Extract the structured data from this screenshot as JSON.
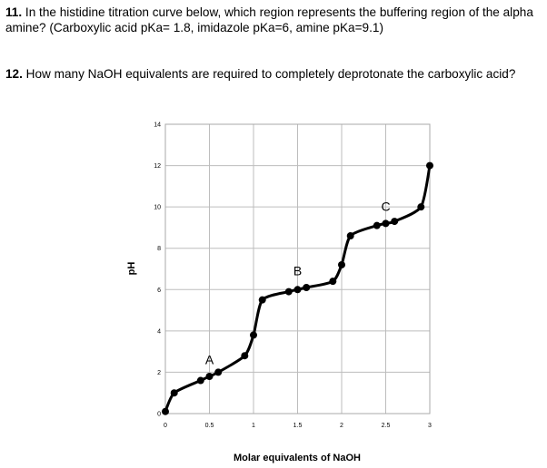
{
  "questions": [
    {
      "number": "11.",
      "text": " In the histidine titration curve below, which region represents the buffering region of the alpha amine? (Carboxylic acid pKa= 1.8, imidazole pKa=6, amine pKa=9.1)"
    },
    {
      "number": "12.",
      "text": " How many NaOH equivalents are required to completely deprotonate the carboxylic acid?"
    }
  ],
  "chart_data": {
    "type": "line",
    "title": "",
    "xlabel": "Molar equivalents of NaOH",
    "ylabel": "pH",
    "xlim": [
      0,
      3
    ],
    "ylim": [
      0,
      14
    ],
    "grid": true,
    "x_ticks": [
      0,
      0.5,
      1,
      1.5,
      2,
      2.5,
      3
    ],
    "x_tick_labels": [
      "0",
      "0.5",
      "1",
      "1.5",
      "2",
      "2.5",
      "3"
    ],
    "y_ticks": [
      0,
      2,
      4,
      6,
      8,
      10,
      12,
      14
    ],
    "y_tick_labels": [
      "0",
      "2",
      "4",
      "6",
      "8",
      "10",
      "12",
      "14"
    ],
    "series": [
      {
        "values": [
          [
            0.0,
            0.1
          ],
          [
            0.1,
            1.0
          ],
          [
            0.4,
            1.6
          ],
          [
            0.5,
            1.8
          ],
          [
            0.6,
            2.0
          ],
          [
            0.9,
            2.8
          ],
          [
            1.0,
            3.8
          ],
          [
            1.1,
            5.5
          ],
          [
            1.4,
            5.9
          ],
          [
            1.5,
            6.0
          ],
          [
            1.6,
            6.1
          ],
          [
            1.9,
            6.4
          ],
          [
            2.0,
            7.2
          ],
          [
            2.1,
            8.6
          ],
          [
            2.4,
            9.1
          ],
          [
            2.5,
            9.2
          ],
          [
            2.6,
            9.3
          ],
          [
            2.9,
            10.0
          ],
          [
            3.0,
            12.0
          ]
        ]
      }
    ],
    "annotations": [
      {
        "text": "A",
        "x": 0.5,
        "y": 2.4
      },
      {
        "text": "B",
        "x": 1.5,
        "y": 6.7
      },
      {
        "text": "C",
        "x": 2.5,
        "y": 9.8
      }
    ]
  }
}
